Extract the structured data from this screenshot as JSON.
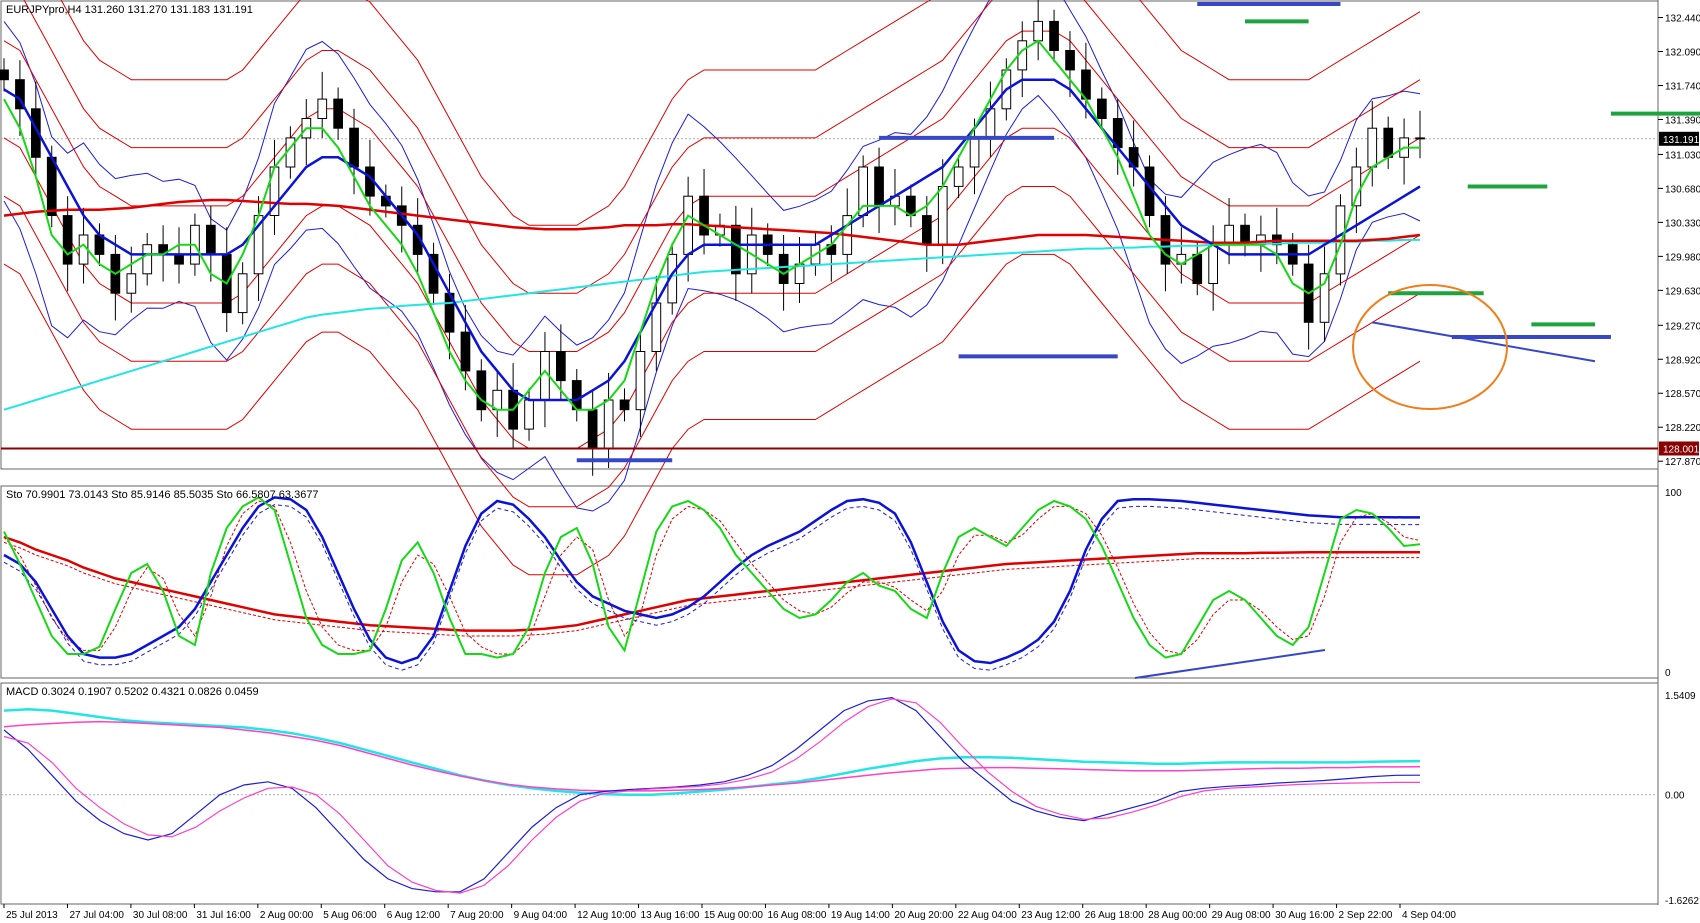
{
  "header": {
    "main": "EURJPYpro,H4  131.260 131.270 131.183 131.191",
    "stoch": "Sto 70.9901 73.0143  Sto 85.9146 85.5035  Sto 66.5807 63.3677",
    "macd": "MACD 0.3024 0.1907 0.5202 0.4321 0.0826 0.0459"
  },
  "chart_data": [
    {
      "type": "candlestick",
      "symbol": "EURJPYpro",
      "timeframe": "H4",
      "ohlc_last": [
        131.26,
        131.27,
        131.183,
        131.191
      ],
      "price_axis": [
        "132.440",
        "132.090",
        "131.740",
        "131.390",
        "131.030",
        "130.680",
        "130.330",
        "129.980",
        "129.630",
        "129.270",
        "128.920",
        "128.570",
        "128.220",
        "127.870"
      ],
      "ylim": [
        127.8,
        132.6
      ],
      "current_price": "131.191",
      "support_level": "128.001",
      "closes": [
        131.8,
        131.5,
        131.0,
        130.4,
        129.9,
        130.2,
        130.0,
        129.6,
        129.8,
        130.1,
        130.0,
        129.9,
        130.3,
        130.0,
        129.4,
        129.8,
        130.4,
        130.9,
        131.2,
        131.4,
        131.6,
        131.3,
        130.9,
        130.6,
        130.5,
        130.3,
        130.0,
        129.6,
        129.2,
        128.8,
        128.4,
        128.6,
        128.2,
        128.5,
        129.0,
        128.7,
        128.4,
        128.0,
        128.5,
        128.4,
        129.0,
        129.5,
        130.0,
        130.6,
        130.2,
        130.3,
        129.8,
        130.2,
        130.0,
        129.7,
        129.9,
        130.1,
        130.0,
        130.4,
        130.9,
        130.5,
        130.6,
        130.4,
        130.1,
        130.7,
        130.9,
        131.2,
        131.5,
        131.9,
        132.2,
        132.4,
        132.1,
        131.9,
        131.6,
        131.4,
        131.1,
        130.9,
        130.4,
        129.9,
        130.0,
        129.7,
        130.1,
        130.3,
        130.1,
        130.2,
        130.1,
        129.9,
        129.3,
        129.8,
        130.5,
        130.9,
        131.3,
        131.0,
        131.2,
        131.191
      ],
      "sma_near": [
        131.6,
        131.3,
        130.8,
        130.2,
        130.0,
        130.1,
        129.9,
        129.8,
        129.9,
        130.0,
        130.0,
        130.1,
        130.1,
        129.8,
        129.7,
        130.0,
        130.4,
        130.9,
        131.1,
        131.3,
        131.3,
        131.1,
        130.8,
        130.5,
        130.3,
        130.1,
        129.8,
        129.4,
        129.0,
        128.7,
        128.5,
        128.4,
        128.4,
        128.6,
        128.8,
        128.6,
        128.4,
        128.4,
        128.5,
        128.7,
        129.2,
        129.7,
        130.1,
        130.4,
        130.3,
        130.2,
        130.1,
        130.0,
        129.9,
        129.8,
        129.9,
        130.0,
        130.1,
        130.3,
        130.5,
        130.5,
        130.5,
        130.4,
        130.5,
        130.7,
        131.0,
        131.3,
        131.6,
        131.9,
        132.1,
        132.2,
        132.0,
        131.8,
        131.6,
        131.3,
        131.0,
        130.6,
        130.2,
        130.0,
        129.9,
        130.0,
        130.1,
        130.1,
        130.1,
        130.1,
        130.0,
        129.7,
        129.6,
        129.7,
        130.1,
        130.6,
        130.9,
        131.0,
        131.1,
        131.1
      ],
      "sma_mid": [
        131.7,
        131.6,
        131.3,
        131.0,
        130.7,
        130.4,
        130.2,
        130.1,
        130.0,
        130.0,
        130.0,
        130.0,
        130.0,
        130.0,
        130.0,
        130.1,
        130.3,
        130.5,
        130.7,
        130.9,
        131.0,
        131.0,
        130.9,
        130.8,
        130.6,
        130.4,
        130.2,
        129.9,
        129.6,
        129.3,
        129.0,
        128.8,
        128.6,
        128.5,
        128.5,
        128.5,
        128.5,
        128.6,
        128.7,
        128.9,
        129.2,
        129.5,
        129.8,
        130.0,
        130.1,
        130.1,
        130.1,
        130.1,
        130.1,
        130.1,
        130.1,
        130.1,
        130.2,
        130.3,
        130.4,
        130.5,
        130.6,
        130.7,
        130.8,
        130.9,
        131.1,
        131.3,
        131.5,
        131.7,
        131.8,
        131.8,
        131.8,
        131.7,
        131.5,
        131.3,
        131.1,
        130.9,
        130.7,
        130.5,
        130.3,
        130.2,
        130.1,
        130.0,
        130.0,
        130.0,
        130.0,
        130.0,
        130.0,
        130.1,
        130.2,
        130.3,
        130.4,
        130.5,
        130.6,
        130.7
      ],
      "sma_long": [
        130.4,
        130.42,
        130.44,
        130.45,
        130.46,
        130.46,
        130.46,
        130.47,
        130.48,
        130.5,
        130.52,
        130.54,
        130.55,
        130.56,
        130.56,
        130.55,
        130.54,
        130.53,
        130.52,
        130.52,
        130.51,
        130.5,
        130.48,
        130.46,
        130.44,
        130.42,
        130.4,
        130.38,
        130.36,
        130.34,
        130.32,
        130.3,
        130.28,
        130.27,
        130.26,
        130.26,
        130.26,
        130.27,
        130.28,
        130.3,
        130.3,
        130.3,
        130.31,
        130.31,
        130.3,
        130.29,
        130.28,
        130.27,
        130.26,
        130.25,
        130.24,
        130.23,
        130.22,
        130.2,
        130.18,
        130.16,
        130.14,
        130.12,
        130.1,
        130.1,
        130.1,
        130.12,
        130.14,
        130.16,
        130.18,
        130.2,
        130.2,
        130.2,
        130.2,
        130.19,
        130.18,
        130.17,
        130.16,
        130.15,
        130.14,
        130.13,
        130.12,
        130.12,
        130.12,
        130.13,
        130.14,
        130.14,
        130.14,
        130.14,
        130.14,
        130.14,
        130.15,
        130.16,
        130.18,
        130.2
      ],
      "sma_vlong": [
        128.4,
        128.45,
        128.5,
        128.55,
        128.6,
        128.65,
        128.7,
        128.75,
        128.8,
        128.85,
        128.9,
        128.95,
        129.0,
        129.05,
        129.1,
        129.15,
        129.2,
        129.25,
        129.3,
        129.35,
        129.38,
        129.4,
        129.42,
        129.44,
        129.45,
        129.47,
        129.48,
        129.49,
        129.5,
        129.52,
        129.54,
        129.56,
        129.58,
        129.6,
        129.62,
        129.64,
        129.66,
        129.68,
        129.7,
        129.72,
        129.74,
        129.76,
        129.78,
        129.8,
        129.82,
        129.83,
        129.84,
        129.85,
        129.86,
        129.87,
        129.88,
        129.89,
        129.9,
        129.91,
        129.92,
        129.93,
        129.94,
        129.95,
        129.96,
        129.97,
        129.98,
        129.99,
        130.0,
        130.01,
        130.02,
        130.03,
        130.04,
        130.05,
        130.06,
        130.06,
        130.07,
        130.07,
        130.08,
        130.08,
        130.09,
        130.09,
        130.1,
        130.1,
        130.1,
        130.11,
        130.11,
        130.12,
        130.12,
        130.12,
        130.13,
        130.13,
        130.14,
        130.14,
        130.15,
        130.15
      ]
    },
    {
      "type": "line",
      "name": "Stochastic",
      "ylim": [
        0,
        100
      ],
      "axis_ticks": [
        "100",
        "0"
      ],
      "fast": [
        78,
        60,
        40,
        20,
        10,
        10,
        14,
        35,
        55,
        60,
        45,
        20,
        15,
        55,
        80,
        92,
        97,
        90,
        60,
        30,
        15,
        10,
        10,
        12,
        35,
        62,
        72,
        55,
        30,
        10,
        10,
        8,
        10,
        25,
        55,
        75,
        80,
        60,
        25,
        12,
        45,
        78,
        92,
        95,
        90,
        80,
        65,
        55,
        45,
        35,
        30,
        32,
        40,
        50,
        55,
        48,
        45,
        35,
        30,
        55,
        75,
        80,
        75,
        70,
        80,
        90,
        95,
        92,
        85,
        70,
        50,
        30,
        15,
        8,
        10,
        25,
        40,
        45,
        40,
        30,
        20,
        15,
        25,
        55,
        85,
        90,
        88,
        80,
        70,
        70.99
      ],
      "slow": [
        75,
        65,
        48,
        30,
        18,
        12,
        12,
        25,
        45,
        58,
        52,
        32,
        20,
        42,
        70,
        88,
        95,
        92,
        72,
        45,
        25,
        15,
        12,
        12,
        25,
        50,
        65,
        60,
        42,
        22,
        14,
        10,
        10,
        18,
        42,
        65,
        75,
        68,
        40,
        20,
        32,
        65,
        85,
        92,
        90,
        84,
        72,
        60,
        50,
        40,
        34,
        32,
        36,
        44,
        50,
        50,
        47,
        40,
        34,
        45,
        65,
        76,
        76,
        72,
        76,
        85,
        92,
        92,
        88,
        76,
        58,
        38,
        22,
        12,
        10,
        18,
        32,
        40,
        40,
        34,
        25,
        18,
        20,
        42,
        72,
        86,
        88,
        83,
        75,
        73.01
      ],
      "mid": [
        65,
        60,
        50,
        35,
        20,
        10,
        8,
        8,
        10,
        15,
        20,
        25,
        35,
        50,
        65,
        80,
        92,
        97,
        96,
        90,
        75,
        55,
        35,
        18,
        8,
        5,
        8,
        20,
        45,
        70,
        88,
        95,
        93,
        85,
        75,
        62,
        50,
        42,
        38,
        34,
        32,
        30,
        32,
        36,
        42,
        50,
        58,
        65,
        70,
        74,
        78,
        84,
        90,
        95,
        96,
        94,
        88,
        72,
        50,
        28,
        12,
        6,
        5,
        8,
        12,
        18,
        28,
        45,
        68,
        85,
        95,
        96,
        96,
        95.5,
        95,
        94,
        93,
        92,
        91,
        90,
        89,
        88,
        87,
        86.5,
        86,
        86,
        86,
        86,
        85.91,
        85.91
      ],
      "long": [
        75,
        72,
        68,
        65,
        62,
        58,
        55,
        52,
        50,
        48,
        46,
        44,
        42,
        40,
        38,
        36,
        34,
        32,
        31,
        30,
        29,
        28,
        27,
        26,
        25.5,
        25,
        24.5,
        24,
        23.5,
        23,
        23,
        23,
        23,
        23.5,
        24,
        25,
        26,
        28,
        30,
        32,
        34,
        36,
        38,
        40,
        41,
        42,
        43,
        44,
        45,
        46,
        47,
        48,
        49,
        50,
        51,
        52,
        53,
        54,
        55,
        56,
        57,
        58,
        59,
        60,
        60.5,
        61,
        61.5,
        62,
        62.5,
        63,
        63.5,
        64,
        64.5,
        65,
        65.5,
        66,
        66,
        66,
        66,
        66.2,
        66.3,
        66.4,
        66.5,
        66.5,
        66.55,
        66.58,
        66.58,
        66.58,
        66.58,
        66.58
      ]
    },
    {
      "type": "line",
      "name": "MACD",
      "ylim": [
        -1.6262,
        1.5409
      ],
      "axis_ticks": [
        "1.5409",
        "0.00",
        "-1.6262"
      ],
      "fast_main": [
        1.0,
        0.7,
        0.3,
        -0.1,
        -0.4,
        -0.6,
        -0.7,
        -0.6,
        -0.3,
        0.0,
        0.15,
        0.2,
        0.1,
        -0.2,
        -0.6,
        -1.0,
        -1.3,
        -1.45,
        -1.5,
        -1.5,
        -1.3,
        -0.9,
        -0.5,
        -0.2,
        0.0,
        0.05,
        0.08,
        0.1,
        0.12,
        0.15,
        0.2,
        0.3,
        0.45,
        0.7,
        1.0,
        1.3,
        1.45,
        1.5,
        1.3,
        0.9,
        0.5,
        0.2,
        -0.1,
        -0.25,
        -0.35,
        -0.4,
        -0.3,
        -0.2,
        -0.1,
        0.05,
        0.1,
        0.13,
        0.15,
        0.18,
        0.2,
        0.22,
        0.25,
        0.28,
        0.3,
        0.3024
      ],
      "fast_signal": [
        0.9,
        0.8,
        0.5,
        0.1,
        -0.2,
        -0.45,
        -0.62,
        -0.65,
        -0.5,
        -0.25,
        -0.05,
        0.1,
        0.12,
        0.0,
        -0.3,
        -0.7,
        -1.1,
        -1.35,
        -1.48,
        -1.52,
        -1.4,
        -1.1,
        -0.7,
        -0.35,
        -0.1,
        0.02,
        0.06,
        0.09,
        0.11,
        0.13,
        0.17,
        0.24,
        0.35,
        0.55,
        0.82,
        1.12,
        1.36,
        1.48,
        1.42,
        1.12,
        0.72,
        0.35,
        0.05,
        -0.18,
        -0.3,
        -0.38,
        -0.36,
        -0.27,
        -0.16,
        -0.03,
        0.06,
        0.1,
        0.12,
        0.14,
        0.16,
        0.17,
        0.18,
        0.185,
        0.19,
        0.1907
      ],
      "slow_main": [
        1.3,
        1.32,
        1.3,
        1.25,
        1.2,
        1.15,
        1.12,
        1.1,
        1.08,
        1.06,
        1.04,
        1.0,
        0.95,
        0.88,
        0.8,
        0.7,
        0.6,
        0.5,
        0.4,
        0.3,
        0.22,
        0.15,
        0.1,
        0.06,
        0.03,
        0.01,
        0.0,
        0.0,
        0.02,
        0.05,
        0.08,
        0.12,
        0.16,
        0.2,
        0.26,
        0.33,
        0.4,
        0.46,
        0.52,
        0.56,
        0.58,
        0.58,
        0.57,
        0.55,
        0.53,
        0.51,
        0.5,
        0.49,
        0.48,
        0.48,
        0.49,
        0.5,
        0.5,
        0.5,
        0.5,
        0.5,
        0.5,
        0.51,
        0.515,
        0.5202
      ],
      "slow_signal": [
        1.05,
        1.08,
        1.1,
        1.12,
        1.13,
        1.12,
        1.1,
        1.08,
        1.06,
        1.04,
        1.0,
        0.96,
        0.9,
        0.84,
        0.76,
        0.66,
        0.56,
        0.46,
        0.37,
        0.29,
        0.22,
        0.16,
        0.12,
        0.09,
        0.07,
        0.06,
        0.06,
        0.06,
        0.07,
        0.08,
        0.1,
        0.12,
        0.15,
        0.18,
        0.22,
        0.26,
        0.3,
        0.34,
        0.37,
        0.4,
        0.41,
        0.42,
        0.42,
        0.41,
        0.4,
        0.39,
        0.38,
        0.37,
        0.37,
        0.37,
        0.38,
        0.39,
        0.4,
        0.41,
        0.41,
        0.42,
        0.42,
        0.43,
        0.43,
        0.4321
      ]
    }
  ],
  "time_axis": [
    "25 Jul 2013",
    "27 Jul 04:00",
    "30 Jul 08:00",
    "31 Jul 16:00",
    "2 Aug 00:00",
    "5 Aug 06:00",
    "6 Aug 12:00",
    "7 Aug 20:00",
    "9 Aug 04:00",
    "12 Aug 10:00",
    "13 Aug 16:00",
    "15 Aug 00:00",
    "16 Aug 08:00",
    "19 Aug 14:00",
    "20 Aug 20:00",
    "22 Aug 04:00",
    "23 Aug 12:00",
    "26 Aug 18:00",
    "28 Aug 00:00",
    "29 Aug 08:00",
    "30 Aug 16:00",
    "2 Sep 22:00",
    "4 Sep 04:00"
  ],
  "stoch_axis": [
    "100",
    "0"
  ],
  "macd_axis": [
    "1.5409",
    "0.00",
    "-1.6262"
  ],
  "colors": {
    "bollinger": "#1d1dd9",
    "envelope": "#e00000",
    "sma_long": "#e00000",
    "sma_vlong": "#22e5e5",
    "sma_near": "#16d816",
    "sma_mid": "#0b13d6",
    "support": "#8b0000",
    "annotation_blue": "#3648c8",
    "annotation_green": "#1fa33f",
    "annotation_circle": "#f07e1a",
    "macd_cyan": "#22e5e5",
    "macd_magenta": "#ff40c8"
  }
}
